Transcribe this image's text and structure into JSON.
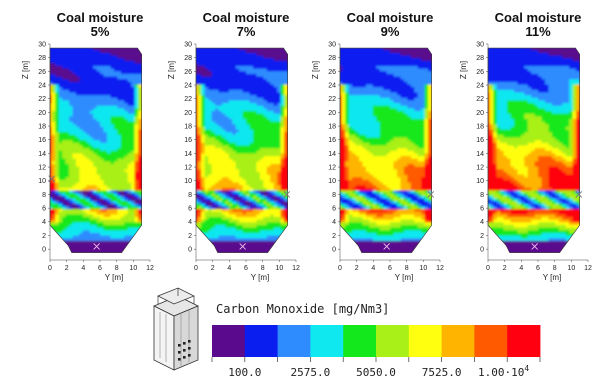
{
  "chart_data": {
    "type": "heatmap",
    "panels": [
      {
        "title_line1": "Coal moisture",
        "title_line2": "5%",
        "intensity": 0.0
      },
      {
        "title_line1": "Coal moisture",
        "title_line2": "7%",
        "intensity": 0.12
      },
      {
        "title_line1": "Coal moisture",
        "title_line2": "9%",
        "intensity": 0.3
      },
      {
        "title_line1": "Coal moisture",
        "title_line2": "11%",
        "intensity": 0.48
      }
    ],
    "zlabel": "Z [m]",
    "ylabel": "Y [m]",
    "z_ticks": [
      "0",
      "2",
      "4",
      "6",
      "8",
      "10",
      "12",
      "14",
      "16",
      "18",
      "20",
      "22",
      "24",
      "26",
      "28",
      "30"
    ],
    "y_ticks": [
      "0",
      "2",
      "4",
      "6",
      "8",
      "10",
      "12"
    ],
    "zlim": [
      -1,
      30
    ],
    "ylim": [
      0,
      12
    ],
    "colorbar": {
      "title": "Carbon Monoxide [mg/Nm3]",
      "colors": [
        "#5a0a8c",
        "#0a1ef0",
        "#2f8cff",
        "#10e8f0",
        "#12e81c",
        "#a8f018",
        "#ffff10",
        "#ffb400",
        "#ff5a00",
        "#ff0010"
      ],
      "tick_labels": [
        "100.0",
        "2575.0",
        "5050.0",
        "7525.0",
        "1.00·10"
      ],
      "last_label_exponent": "4"
    }
  }
}
